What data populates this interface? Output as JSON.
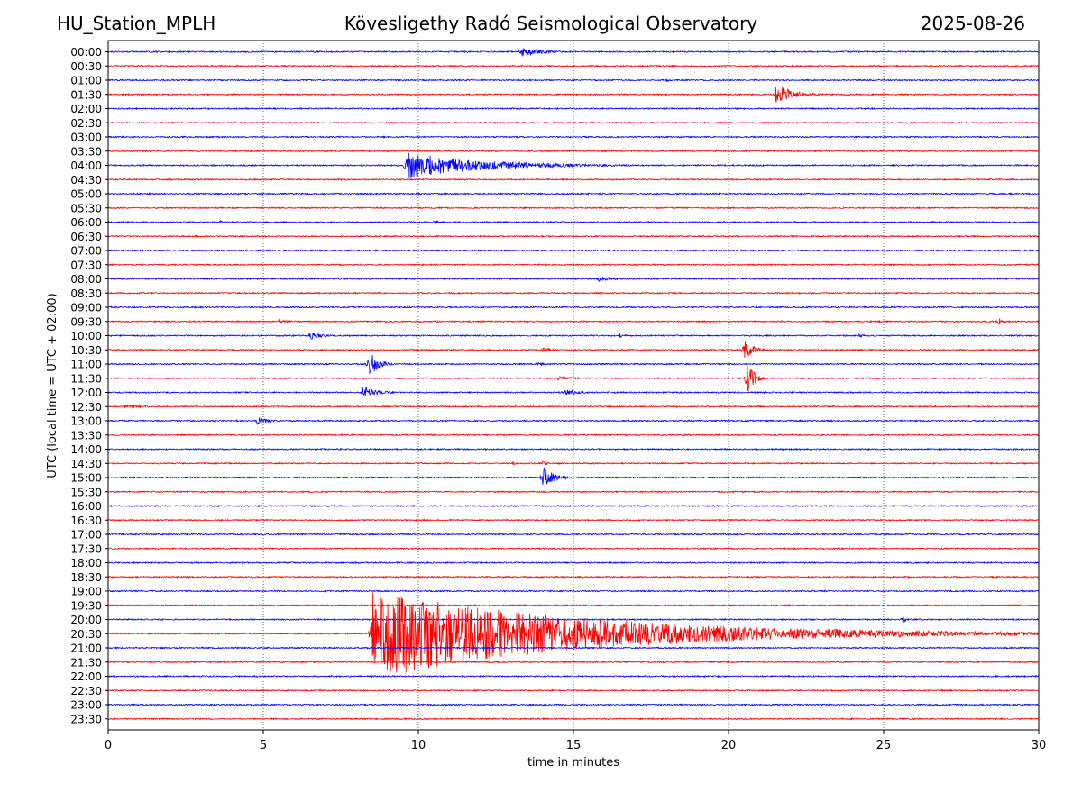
{
  "header": {
    "station": "HU_Station_MPLH",
    "title": "Kövesligethy Radó Seismological Observatory",
    "date": "2025-08-26"
  },
  "chart_data": {
    "type": "line",
    "title": "Kövesligethy Radó Seismological Observatory",
    "xlabel": "time in minutes",
    "ylabel": "UTC (local time = UTC + 02:00)",
    "xlim": [
      0,
      30
    ],
    "xticks": [
      0,
      5,
      10,
      15,
      20,
      25,
      30
    ],
    "grid": "vertical dotted",
    "row_colors": [
      "#0000ff",
      "#ff0000"
    ],
    "rows": [
      "00:00",
      "00:30",
      "01:00",
      "01:30",
      "02:00",
      "02:30",
      "03:00",
      "03:30",
      "04:00",
      "04:30",
      "05:00",
      "05:30",
      "06:00",
      "06:30",
      "07:00",
      "07:30",
      "08:00",
      "08:30",
      "09:00",
      "09:30",
      "10:00",
      "10:30",
      "11:00",
      "11:30",
      "12:00",
      "12:30",
      "13:00",
      "13:30",
      "14:00",
      "14:30",
      "15:00",
      "15:30",
      "16:00",
      "16:30",
      "17:00",
      "17:30",
      "18:00",
      "18:30",
      "19:00",
      "19:30",
      "20:00",
      "20:30",
      "21:00",
      "21:30",
      "22:00",
      "22:30",
      "23:00",
      "23:30"
    ],
    "events": [
      {
        "row": "00:00",
        "start": 13.3,
        "duration": 1.5,
        "amplitude": 0.7
      },
      {
        "row": "01:00",
        "start": 18.0,
        "duration": 0.6,
        "amplitude": 0.25
      },
      {
        "row": "01:30",
        "start": 21.5,
        "duration": 1.2,
        "amplitude": 1.5
      },
      {
        "row": "01:30",
        "start": 23.8,
        "duration": 0.5,
        "amplitude": 0.3
      },
      {
        "row": "04:00",
        "start": 9.6,
        "duration": 5.5,
        "amplitude": 1.9
      },
      {
        "row": "06:00",
        "start": 3.6,
        "duration": 0.3,
        "amplitude": 0.25
      },
      {
        "row": "06:00",
        "start": 10.5,
        "duration": 0.5,
        "amplitude": 0.25
      },
      {
        "row": "08:00",
        "start": 15.8,
        "duration": 1.0,
        "amplitude": 0.45
      },
      {
        "row": "09:30",
        "start": 5.5,
        "duration": 1.5,
        "amplitude": 0.25
      },
      {
        "row": "09:30",
        "start": 28.7,
        "duration": 0.3,
        "amplitude": 0.8
      },
      {
        "row": "10:00",
        "start": 6.5,
        "duration": 0.8,
        "amplitude": 0.7
      },
      {
        "row": "10:00",
        "start": 16.5,
        "duration": 0.4,
        "amplitude": 0.3
      },
      {
        "row": "10:00",
        "start": 24.2,
        "duration": 0.6,
        "amplitude": 0.25
      },
      {
        "row": "10:30",
        "start": 14.0,
        "duration": 0.7,
        "amplitude": 0.5
      },
      {
        "row": "10:30",
        "start": 20.5,
        "duration": 0.6,
        "amplitude": 1.6
      },
      {
        "row": "11:00",
        "start": 8.4,
        "duration": 0.6,
        "amplitude": 2.2
      },
      {
        "row": "11:00",
        "start": 13.8,
        "duration": 0.6,
        "amplitude": 0.3
      },
      {
        "row": "11:30",
        "start": 14.5,
        "duration": 1.5,
        "amplitude": 0.3
      },
      {
        "row": "11:30",
        "start": 20.6,
        "duration": 0.4,
        "amplitude": 3.3
      },
      {
        "row": "12:00",
        "start": 8.2,
        "duration": 1.0,
        "amplitude": 1.0
      },
      {
        "row": "12:00",
        "start": 14.7,
        "duration": 1.0,
        "amplitude": 0.55
      },
      {
        "row": "12:30",
        "start": 0.5,
        "duration": 1.7,
        "amplitude": 0.3
      },
      {
        "row": "13:00",
        "start": 4.8,
        "duration": 0.8,
        "amplitude": 0.6
      },
      {
        "row": "14:30",
        "start": 13.0,
        "duration": 0.3,
        "amplitude": 0.35
      },
      {
        "row": "14:30",
        "start": 14.0,
        "duration": 0.4,
        "amplitude": 0.35
      },
      {
        "row": "15:00",
        "start": 14.0,
        "duration": 0.8,
        "amplitude": 1.6
      },
      {
        "row": "20:00",
        "start": 25.6,
        "duration": 0.3,
        "amplitude": 0.6
      },
      {
        "row": "20:30",
        "start": 8.5,
        "duration": 14.0,
        "amplitude": 6.5
      }
    ]
  }
}
